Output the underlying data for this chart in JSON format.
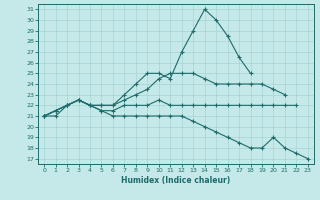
{
  "xlabel": "Humidex (Indice chaleur)",
  "bg_color": "#c5e8e8",
  "grid_color": "#a8d4d4",
  "line_color": "#1e6b6b",
  "xlim": [
    -0.5,
    23.5
  ],
  "ylim": [
    16.5,
    31.5
  ],
  "yticks": [
    17,
    18,
    19,
    20,
    21,
    22,
    23,
    24,
    25,
    26,
    27,
    28,
    29,
    30,
    31
  ],
  "xticks": [
    0,
    1,
    2,
    3,
    4,
    5,
    6,
    7,
    8,
    9,
    10,
    11,
    12,
    13,
    14,
    15,
    16,
    17,
    18,
    19,
    20,
    21,
    22,
    23
  ],
  "lines": [
    {
      "x": [
        0,
        1,
        2,
        3,
        4,
        5,
        6,
        7,
        8,
        9,
        10,
        11,
        12,
        13,
        14,
        15,
        16,
        17,
        18
      ],
      "y": [
        21,
        21.5,
        22,
        22.5,
        22,
        22,
        22,
        23,
        24,
        25,
        25,
        24.5,
        27,
        29,
        31,
        30,
        28.5,
        26.5,
        25
      ]
    },
    {
      "x": [
        0,
        1,
        2,
        3,
        4,
        5,
        6,
        7,
        8,
        9,
        10,
        11,
        12,
        13,
        14,
        15,
        16,
        17,
        18,
        19,
        20,
        21
      ],
      "y": [
        21,
        21.5,
        22,
        22.5,
        22,
        22,
        22,
        22.5,
        23,
        23.5,
        24.5,
        25,
        25,
        25,
        24.5,
        24,
        24,
        24,
        24,
        24,
        23.5,
        23
      ]
    },
    {
      "x": [
        0,
        1,
        2,
        3,
        4,
        5,
        6,
        7,
        8,
        9,
        10,
        11,
        12,
        13,
        14,
        15,
        16,
        17,
        18,
        19,
        20,
        21,
        22
      ],
      "y": [
        21,
        21.5,
        22,
        22.5,
        22,
        21.5,
        21.5,
        22,
        22,
        22,
        22.5,
        22,
        22,
        22,
        22,
        22,
        22,
        22,
        22,
        22,
        22,
        22,
        22
      ]
    },
    {
      "x": [
        0,
        1,
        2,
        3,
        4,
        5,
        6,
        7,
        8,
        9,
        10,
        11,
        12,
        13,
        14,
        15,
        16,
        17,
        18,
        19,
        20,
        21,
        22,
        23
      ],
      "y": [
        21,
        21,
        22,
        22.5,
        22,
        21.5,
        21,
        21,
        21,
        21,
        21,
        21,
        21,
        20.5,
        20,
        19.5,
        19,
        18.5,
        18,
        18,
        19,
        18,
        17.5,
        17
      ]
    }
  ]
}
